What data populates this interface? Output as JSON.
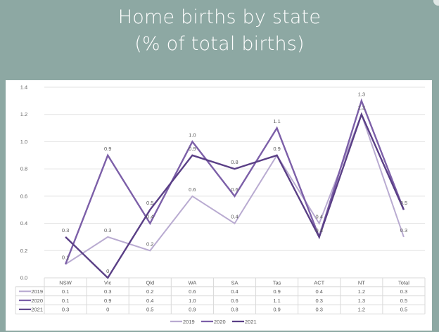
{
  "title_line1": "Home births by state",
  "title_line2": "(% of total births)",
  "colors": {
    "background": "#8da8a3",
    "panel": "#ffffff",
    "gridline": "#e3e3e3",
    "2019": "#b9abd1",
    "2020": "#7c5fa8",
    "2021": "#5a3f86"
  },
  "chart_data": {
    "type": "line",
    "title": "Home births by state (% of total births)",
    "xlabel": "",
    "ylabel": "",
    "categories": [
      "NSW",
      "Vic",
      "Qld",
      "WA",
      "SA",
      "Tas",
      "ACT",
      "NT",
      "Total"
    ],
    "series": [
      {
        "name": "2019",
        "values": [
          0.1,
          0.3,
          0.2,
          0.6,
          0.4,
          0.9,
          0.4,
          1.2,
          0.3
        ]
      },
      {
        "name": "2020",
        "values": [
          0.1,
          0.9,
          0.4,
          1.0,
          0.6,
          1.1,
          0.3,
          1.3,
          0.5
        ]
      },
      {
        "name": "2021",
        "values": [
          0.3,
          0.0,
          0.5,
          0.9,
          0.8,
          0.9,
          0.3,
          1.2,
          0.5
        ]
      }
    ],
    "display_values": {
      "2019": [
        "0.1",
        "0.3",
        "0.2",
        "0.6",
        "0.4",
        "0.9",
        "0.4",
        "1.2",
        "0.3"
      ],
      "2020": [
        "0.1",
        "0.9",
        "0.4",
        "1.0",
        "0.6",
        "1.1",
        "0.3",
        "1.3",
        "0.5"
      ],
      "2021": [
        "0.3",
        "0",
        "0.5",
        "0.9",
        "0.8",
        "0.9",
        "0.3",
        "1.2",
        "0.5"
      ]
    },
    "yticks": [
      "0.0",
      "0.2",
      "0.4",
      "0.6",
      "0.8",
      "1.0",
      "1.2",
      "1.4"
    ],
    "ylim": [
      0,
      1.4
    ],
    "grid": true,
    "legend_position": "bottom",
    "legend": [
      "2019",
      "2020",
      "2021"
    ],
    "data_table": true
  }
}
